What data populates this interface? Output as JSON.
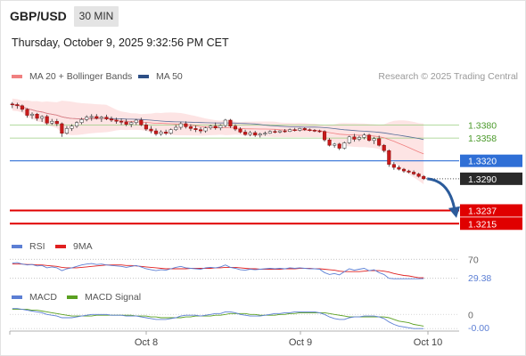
{
  "header": {
    "pair": "GBP/USD",
    "timeframe": "30 MIN",
    "datetime": "Thursday, October 9, 2025 9:32:56 PM CET",
    "credit": "Research © 2025 Trading Central"
  },
  "legend": {
    "ma20": "MA 20 + Bollinger Bands",
    "ma50": "MA 50",
    "rsi": "RSI",
    "rsi_ma": "9MA",
    "macd": "MACD",
    "macd_signal": "MACD Signal"
  },
  "colors": {
    "ma20": "#f08080",
    "ma50": "#2d4f86",
    "bollinger_fill": "#fde4e4",
    "resistance": "#9acd80",
    "pivot": "#2f6fd6",
    "support": "#e00000",
    "rsi": "#5c7fd4",
    "rsi_ma": "#e02020",
    "macd": "#5c7fd4",
    "macd_signal": "#5aa020",
    "arrow": "#2b5b9b"
  },
  "chart_data": [
    {
      "type": "candlestick",
      "title": "GBP/USD",
      "x_ticks": [
        "Oct 8",
        "Oct 9",
        "Oct 10"
      ],
      "ylim": [
        1.3205,
        1.344
      ],
      "candles": [
        [
          1.3415,
          1.3418,
          1.3408,
          1.3414
        ],
        [
          1.3414,
          1.3417,
          1.3407,
          1.3412
        ],
        [
          1.3412,
          1.3414,
          1.3402,
          1.3406
        ],
        [
          1.3406,
          1.3408,
          1.3392,
          1.3396
        ],
        [
          1.3396,
          1.3401,
          1.339,
          1.3398
        ],
        [
          1.3398,
          1.34,
          1.3387,
          1.3391
        ],
        [
          1.3391,
          1.3396,
          1.3385,
          1.3394
        ],
        [
          1.3394,
          1.3397,
          1.338,
          1.3383
        ],
        [
          1.3383,
          1.339,
          1.338,
          1.3386
        ],
        [
          1.3386,
          1.339,
          1.3378,
          1.3382
        ],
        [
          1.3382,
          1.3384,
          1.336,
          1.3366
        ],
        [
          1.3366,
          1.3378,
          1.3364,
          1.3374
        ],
        [
          1.3374,
          1.3381,
          1.337,
          1.3378
        ],
        [
          1.3378,
          1.3386,
          1.3375,
          1.3384
        ],
        [
          1.3384,
          1.3392,
          1.3381,
          1.3389
        ],
        [
          1.3389,
          1.3396,
          1.3386,
          1.3393
        ],
        [
          1.3393,
          1.3398,
          1.3387,
          1.3394
        ],
        [
          1.3394,
          1.3398,
          1.3389,
          1.3391
        ],
        [
          1.3391,
          1.3395,
          1.3385,
          1.3393
        ],
        [
          1.3393,
          1.3397,
          1.3388,
          1.339
        ],
        [
          1.339,
          1.3394,
          1.3385,
          1.3388
        ],
        [
          1.3388,
          1.3392,
          1.3382,
          1.3386
        ],
        [
          1.3386,
          1.3391,
          1.338,
          1.3385
        ],
        [
          1.3385,
          1.339,
          1.3378,
          1.3381
        ],
        [
          1.3381,
          1.3386,
          1.3376,
          1.3384
        ],
        [
          1.3384,
          1.339,
          1.338,
          1.3388
        ],
        [
          1.3388,
          1.3392,
          1.3378,
          1.338
        ],
        [
          1.338,
          1.3384,
          1.337,
          1.3373
        ],
        [
          1.3373,
          1.3378,
          1.3366,
          1.337
        ],
        [
          1.337,
          1.3374,
          1.3362,
          1.3365
        ],
        [
          1.3365,
          1.3371,
          1.3362,
          1.3368
        ],
        [
          1.3368,
          1.3372,
          1.3363,
          1.3366
        ],
        [
          1.3366,
          1.3374,
          1.3364,
          1.3372
        ],
        [
          1.3372,
          1.338,
          1.337,
          1.3376
        ],
        [
          1.3376,
          1.3385,
          1.3372,
          1.3382
        ],
        [
          1.3382,
          1.3386,
          1.3374,
          1.3377
        ],
        [
          1.3377,
          1.3381,
          1.337,
          1.3374
        ],
        [
          1.3374,
          1.3379,
          1.3368,
          1.3372
        ],
        [
          1.3372,
          1.3376,
          1.3366,
          1.337
        ],
        [
          1.337,
          1.3377,
          1.3367,
          1.3375
        ],
        [
          1.3375,
          1.338,
          1.3372,
          1.3378
        ],
        [
          1.3378,
          1.3384,
          1.3372,
          1.3375
        ],
        [
          1.3375,
          1.3381,
          1.3371,
          1.3379
        ],
        [
          1.3379,
          1.339,
          1.3376,
          1.3388
        ],
        [
          1.3388,
          1.339,
          1.3375,
          1.3378
        ],
        [
          1.3378,
          1.3381,
          1.337,
          1.3373
        ],
        [
          1.3373,
          1.3376,
          1.3366,
          1.3368
        ],
        [
          1.3368,
          1.3372,
          1.3362,
          1.3364
        ],
        [
          1.3364,
          1.337,
          1.3361,
          1.3367
        ],
        [
          1.3367,
          1.337,
          1.336,
          1.3363
        ],
        [
          1.3363,
          1.3367,
          1.3359,
          1.3365
        ],
        [
          1.3365,
          1.3369,
          1.3362,
          1.3366
        ],
        [
          1.3366,
          1.3371,
          1.3365,
          1.3369
        ],
        [
          1.3369,
          1.3372,
          1.3366,
          1.3368
        ],
        [
          1.3368,
          1.3371,
          1.3366,
          1.337
        ],
        [
          1.337,
          1.3373,
          1.3367,
          1.3369
        ],
        [
          1.3369,
          1.3374,
          1.3368,
          1.3372
        ],
        [
          1.3372,
          1.3375,
          1.3369,
          1.3371
        ],
        [
          1.3371,
          1.3375,
          1.3369,
          1.3374
        ],
        [
          1.3374,
          1.3376,
          1.337,
          1.3372
        ],
        [
          1.3372,
          1.3374,
          1.3369,
          1.3371
        ],
        [
          1.3371,
          1.3373,
          1.3368,
          1.337
        ],
        [
          1.337,
          1.3372,
          1.3367,
          1.3369
        ],
        [
          1.3369,
          1.3371,
          1.3352,
          1.3355
        ],
        [
          1.3355,
          1.3358,
          1.3344,
          1.3346
        ],
        [
          1.3346,
          1.335,
          1.3342,
          1.3348
        ],
        [
          1.3348,
          1.335,
          1.3338,
          1.3341
        ],
        [
          1.3341,
          1.3352,
          1.3339,
          1.335
        ],
        [
          1.335,
          1.3362,
          1.3348,
          1.336
        ],
        [
          1.336,
          1.3365,
          1.3352,
          1.3356
        ],
        [
          1.3356,
          1.3362,
          1.3353,
          1.3359
        ],
        [
          1.3359,
          1.3366,
          1.3356,
          1.3363
        ],
        [
          1.3363,
          1.3365,
          1.3352,
          1.3354
        ],
        [
          1.3354,
          1.336,
          1.3348,
          1.3357
        ],
        [
          1.3357,
          1.3362,
          1.3344,
          1.3346
        ],
        [
          1.3346,
          1.3348,
          1.3334,
          1.3337
        ],
        [
          1.3337,
          1.3339,
          1.331,
          1.3314
        ],
        [
          1.3314,
          1.3318,
          1.3305,
          1.3309
        ],
        [
          1.3309,
          1.3312,
          1.3304,
          1.3306
        ],
        [
          1.3306,
          1.3308,
          1.33,
          1.3303
        ],
        [
          1.3303,
          1.3305,
          1.3299,
          1.3301
        ],
        [
          1.3301,
          1.3304,
          1.3296,
          1.3298
        ],
        [
          1.3298,
          1.33,
          1.3292,
          1.3294
        ],
        [
          1.3294,
          1.3296,
          1.3288,
          1.329
        ]
      ],
      "levels": {
        "resistance": [
          1.338,
          1.3358
        ],
        "pivot": 1.332,
        "last": 1.329,
        "support": [
          1.3237,
          1.3215
        ]
      },
      "level_labels": [
        "1.3380",
        "1.3358",
        "1.3320",
        "1.3290",
        "1.3237",
        "1.3215"
      ],
      "arrow_target": 1.3226
    },
    {
      "type": "line",
      "title": "RSI",
      "series": [
        {
          "name": "RSI",
          "values": [
            62,
            63,
            60,
            58,
            59,
            56,
            57,
            52,
            54,
            52,
            46,
            50,
            52,
            55,
            58,
            60,
            61,
            59,
            60,
            58,
            57,
            56,
            55,
            53,
            55,
            57,
            54,
            50,
            48,
            46,
            48,
            47,
            50,
            53,
            55,
            52,
            51,
            50,
            49,
            52,
            53,
            52,
            54,
            58,
            53,
            51,
            48,
            47,
            49,
            48,
            49,
            50,
            51,
            50,
            51,
            50,
            52,
            51,
            52,
            51,
            50,
            50,
            49,
            42,
            38,
            40,
            37,
            44,
            50,
            47,
            49,
            51,
            46,
            48,
            42,
            38,
            30,
            29,
            29,
            29,
            29,
            29,
            29,
            29.38
          ]
        },
        {
          "name": "9MA",
          "values": [
            60,
            60,
            60,
            59,
            59,
            58,
            58,
            57,
            56,
            55,
            53,
            52,
            52,
            52,
            53,
            54,
            55,
            56,
            57,
            58,
            58,
            58,
            58,
            57,
            57,
            56,
            55,
            54,
            53,
            52,
            51,
            50,
            50,
            50,
            50,
            50,
            51,
            51,
            51,
            51,
            51,
            52,
            52,
            53,
            53,
            53,
            52,
            51,
            50,
            50,
            49,
            49,
            49,
            49,
            49,
            50,
            50,
            50,
            51,
            51,
            51,
            50,
            50,
            49,
            48,
            47,
            45,
            44,
            44,
            44,
            44,
            45,
            46,
            46,
            46,
            45,
            43,
            40,
            38,
            36,
            35,
            33,
            31,
            31
          ]
        }
      ],
      "tick_labels": [
        "70",
        "29.38"
      ],
      "ylim": [
        20,
        80
      ]
    },
    {
      "type": "line",
      "title": "MACD",
      "series": [
        {
          "name": "MACD",
          "values": [
            0.0007,
            0.0007,
            0.0006,
            0.0005,
            0.0004,
            0.0003,
            0.0002,
            0.0,
            -0.0001,
            -0.0002,
            -0.0004,
            -0.0004,
            -0.0004,
            -0.0003,
            -0.0002,
            -0.0001,
            0.0,
            0.0,
            0.0,
            0.0,
            -0.0001,
            -0.0001,
            -0.0001,
            -0.0002,
            -0.0002,
            -0.0002,
            -0.0003,
            -0.0004,
            -0.0005,
            -0.0006,
            -0.0006,
            -0.0006,
            -0.0005,
            -0.0004,
            -0.0002,
            -0.0001,
            -0.0001,
            -0.0001,
            -0.0002,
            -0.0001,
            0.0,
            0.0001,
            0.0001,
            0.0003,
            0.0003,
            0.0002,
            0.0,
            -0.0001,
            -0.0002,
            -0.0002,
            -0.0002,
            -0.0001,
            0.0,
            0.0001,
            0.0001,
            0.0002,
            0.0002,
            0.0003,
            0.0003,
            0.0003,
            0.0003,
            0.0003,
            0.0002,
            0.0,
            -0.0003,
            -0.0005,
            -0.0006,
            -0.0006,
            -0.0004,
            -0.0003,
            -0.0003,
            -0.0002,
            -0.0002,
            -0.0002,
            -0.0003,
            -0.0005,
            -0.0009,
            -0.0012,
            -0.0014,
            -0.0015,
            -0.0016,
            -0.0017,
            -0.0017,
            -0.0017
          ]
        },
        {
          "name": "MACD Signal",
          "values": [
            0.0006,
            0.0006,
            0.0006,
            0.0006,
            0.0005,
            0.0005,
            0.0004,
            0.0003,
            0.0002,
            0.0001,
            0.0,
            -0.0001,
            -0.0002,
            -0.0002,
            -0.0002,
            -0.0002,
            -0.0002,
            -0.0001,
            -0.0001,
            -0.0001,
            -0.0001,
            -0.0001,
            -0.0001,
            -0.0001,
            -0.0001,
            -0.0002,
            -0.0002,
            -0.0002,
            -0.0003,
            -0.0003,
            -0.0004,
            -0.0004,
            -0.0004,
            -0.0004,
            -0.0004,
            -0.0003,
            -0.0003,
            -0.0002,
            -0.0002,
            -0.0002,
            -0.0002,
            -0.0001,
            -0.0001,
            0.0,
            0.0001,
            0.0001,
            0.0001,
            0.0001,
            0.0,
            0.0,
            -0.0001,
            -0.0001,
            -0.0001,
            -0.0001,
            0.0,
            0.0,
            0.0001,
            0.0001,
            0.0002,
            0.0002,
            0.0002,
            0.0002,
            0.0002,
            0.0002,
            0.0001,
            0.0,
            -0.0001,
            -0.0002,
            -0.0003,
            -0.0003,
            -0.0003,
            -0.0003,
            -0.0003,
            -0.0003,
            -0.0003,
            -0.0003,
            -0.0004,
            -0.0006,
            -0.0008,
            -0.0009,
            -0.001,
            -0.0012,
            -0.0013,
            -0.0014
          ]
        }
      ],
      "tick_labels": [
        "0",
        "-0.00"
      ],
      "ylim": [
        -0.002,
        0.0012
      ]
    }
  ]
}
